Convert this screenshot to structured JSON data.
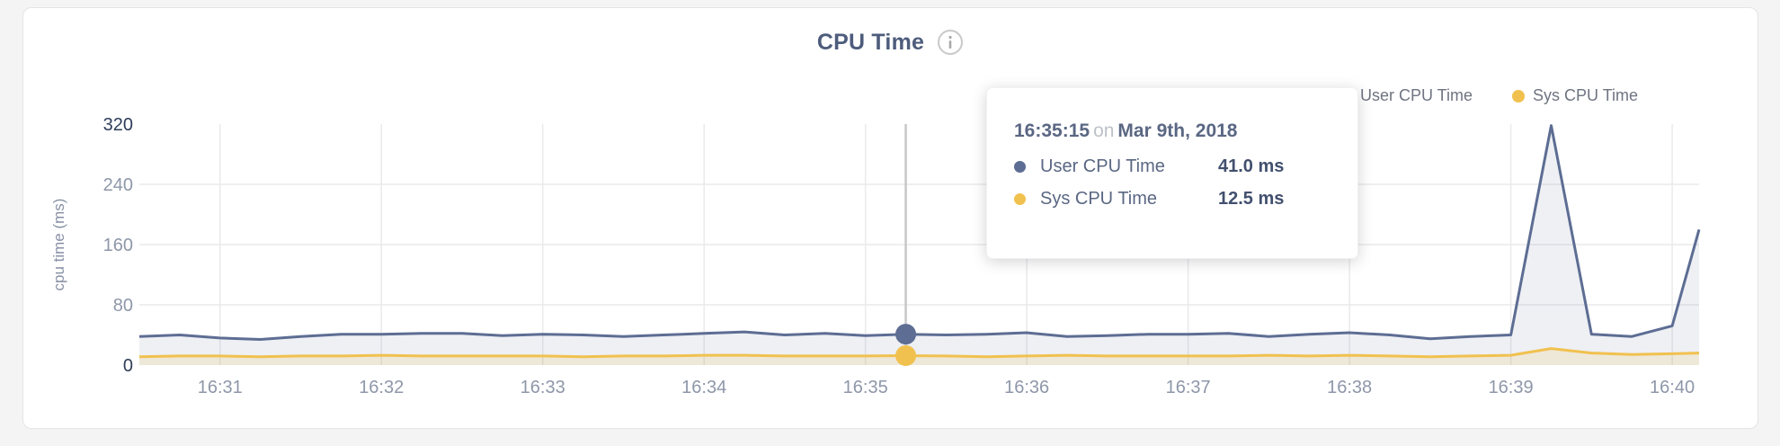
{
  "header": {
    "title": "CPU Time"
  },
  "legend": [
    {
      "label": "User CPU Time",
      "color": "#5d6d93"
    },
    {
      "label": "Sys CPU Time",
      "color": "#f1c14f"
    }
  ],
  "tooltip": {
    "time": "16:35:15",
    "preposition": "on",
    "date": "Mar 9th, 2018",
    "rows": [
      {
        "label": "User CPU Time",
        "value": "41.0 ms",
        "color": "#5d6d93"
      },
      {
        "label": "Sys CPU Time",
        "value": "12.5 ms",
        "color": "#f1c14f"
      }
    ]
  },
  "chart_data": {
    "type": "area",
    "title": "CPU Time",
    "xlabel": "",
    "ylabel": "cpu time (ms)",
    "ylim": [
      0,
      320
    ],
    "yticks": [
      0,
      80,
      160,
      240,
      320
    ],
    "xticks": [
      "16:31",
      "16:32",
      "16:33",
      "16:34",
      "16:35",
      "16:36",
      "16:37",
      "16:38",
      "16:39",
      "16:40"
    ],
    "grid": true,
    "legend_position": "top-right",
    "x": [
      "16:30:30",
      "16:30:45",
      "16:31:00",
      "16:31:15",
      "16:31:30",
      "16:31:45",
      "16:32:00",
      "16:32:15",
      "16:32:30",
      "16:32:45",
      "16:33:00",
      "16:33:15",
      "16:33:30",
      "16:33:45",
      "16:34:00",
      "16:34:15",
      "16:34:30",
      "16:34:45",
      "16:35:00",
      "16:35:15",
      "16:35:30",
      "16:35:45",
      "16:36:00",
      "16:36:15",
      "16:36:30",
      "16:36:45",
      "16:37:00",
      "16:37:15",
      "16:37:30",
      "16:37:45",
      "16:38:00",
      "16:38:15",
      "16:38:30",
      "16:38:45",
      "16:39:00",
      "16:39:15",
      "16:39:30",
      "16:39:45",
      "16:40:00",
      "16:40:10"
    ],
    "series": [
      {
        "name": "User CPU Time",
        "color": "#5d6d93",
        "values": [
          38,
          40,
          36,
          34,
          38,
          41,
          41,
          42,
          42,
          39,
          41,
          40,
          38,
          40,
          42,
          44,
          40,
          42,
          39,
          41,
          40,
          41,
          43,
          38,
          39,
          41,
          41,
          42,
          38,
          41,
          43,
          40,
          35,
          38,
          40,
          318,
          41,
          38,
          52,
          180
        ]
      },
      {
        "name": "Sys CPU Time",
        "color": "#f1c14f",
        "values": [
          11,
          12,
          12,
          11,
          12,
          12,
          13,
          12,
          12,
          12,
          12,
          11,
          12,
          12,
          13,
          13,
          12,
          12,
          12,
          12.5,
          12,
          11,
          12,
          13,
          12,
          12,
          12,
          12,
          13,
          12,
          13,
          12,
          11,
          12,
          13,
          22,
          16,
          14,
          15,
          16
        ]
      }
    ],
    "hover": {
      "time": "16:35:15",
      "index": 19,
      "values": {
        "User CPU Time": 41.0,
        "Sys CPU Time": 12.5
      },
      "unit": "ms"
    }
  }
}
